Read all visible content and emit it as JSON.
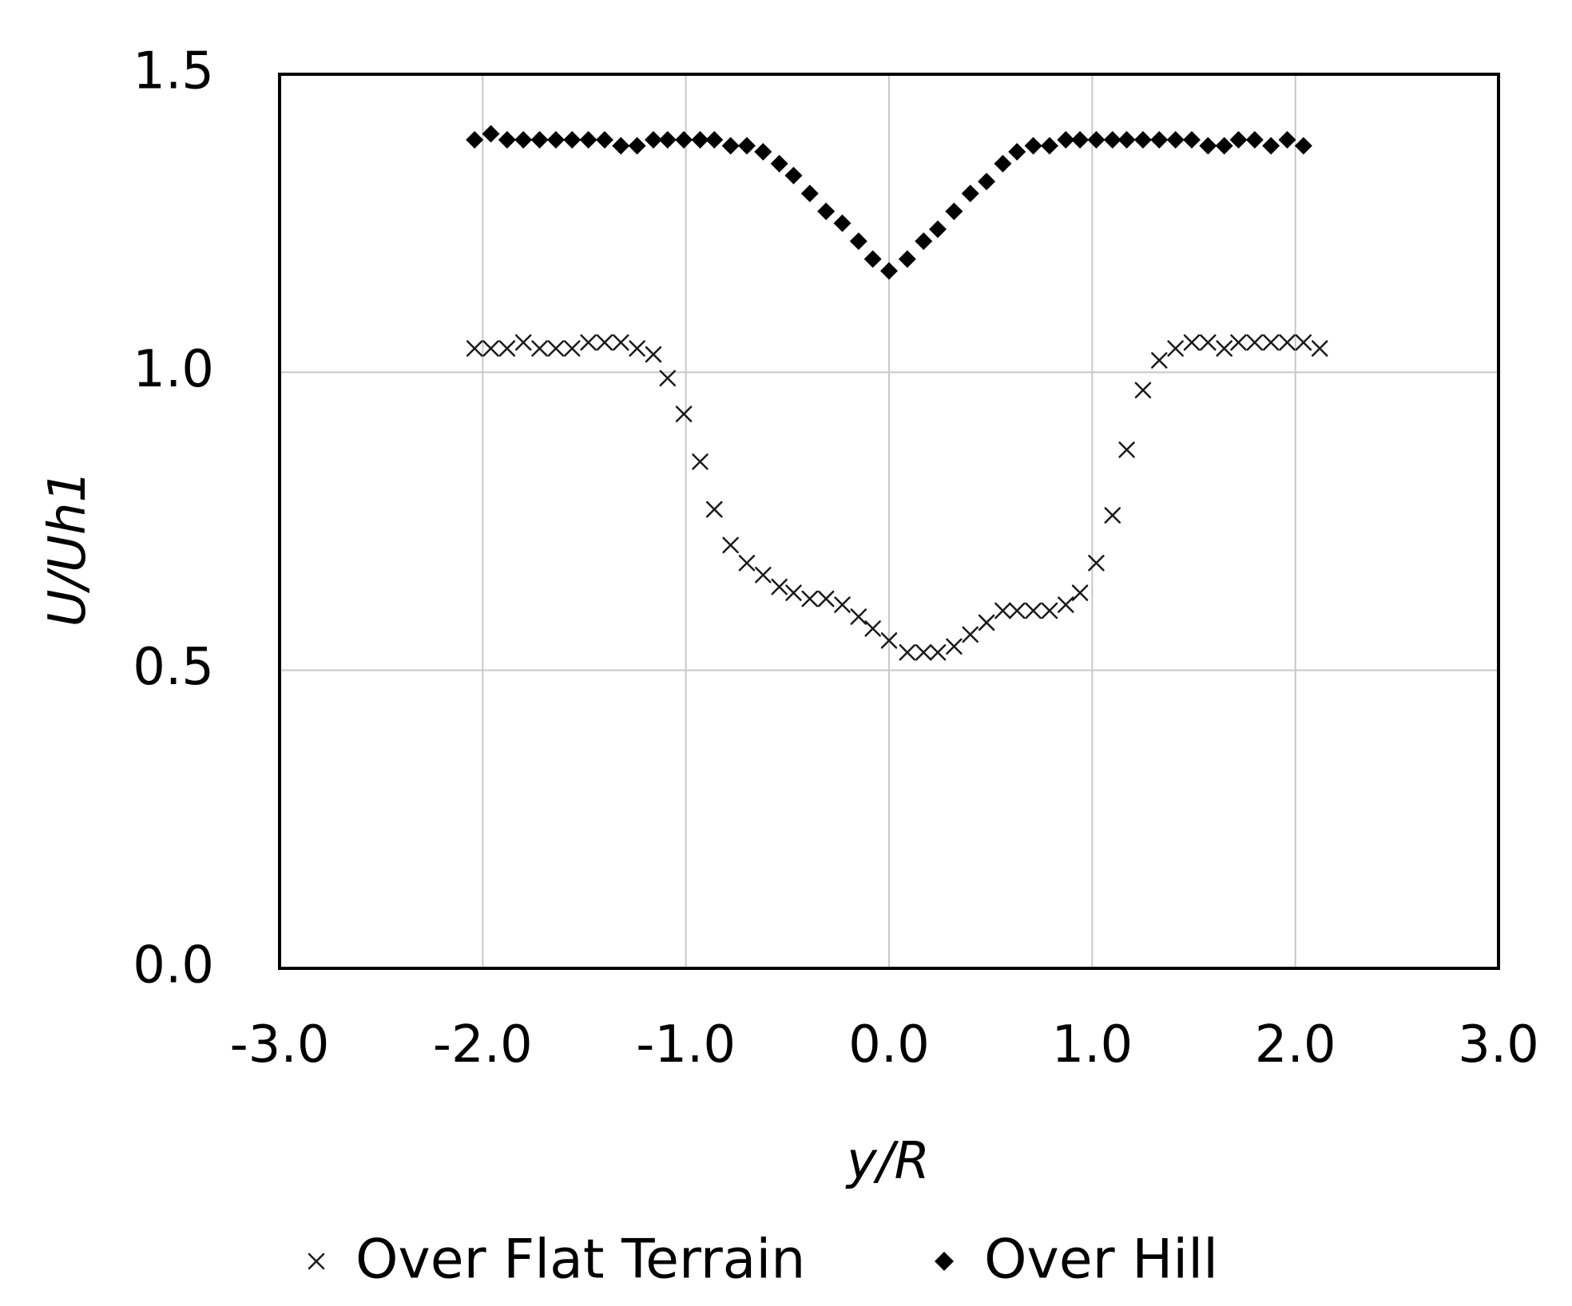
{
  "chart_data": {
    "type": "scatter",
    "title": "",
    "xlabel": "y/R",
    "ylabel": "U/Uh1",
    "xlim": [
      -3.0,
      3.0
    ],
    "ylim": [
      0.0,
      1.5
    ],
    "xticks": [
      "-3.0",
      "-2.0",
      "-1.0",
      "0.0",
      "1.0",
      "2.0",
      "3.0"
    ],
    "yticks": [
      "0.0",
      "0.5",
      "1.0",
      "1.5"
    ],
    "x_tick_values": [
      -3.0,
      -2.0,
      -1.0,
      0.0,
      1.0,
      2.0,
      3.0
    ],
    "y_tick_values": [
      0.0,
      0.5,
      1.0,
      1.5
    ],
    "grid": true,
    "legend_position": "bottom",
    "series": [
      {
        "name": "Over Flat Terrain",
        "marker": "x",
        "color": "#000000",
        "x": [
          -2.04,
          -1.96,
          -1.88,
          -1.8,
          -1.72,
          -1.64,
          -1.56,
          -1.48,
          -1.4,
          -1.32,
          -1.24,
          -1.16,
          -1.09,
          -1.01,
          -0.93,
          -0.86,
          -0.78,
          -0.7,
          -0.62,
          -0.54,
          -0.47,
          -0.39,
          -0.31,
          -0.23,
          -0.15,
          -0.08,
          0.0,
          0.09,
          0.17,
          0.24,
          0.32,
          0.4,
          0.48,
          0.56,
          0.63,
          0.71,
          0.79,
          0.87,
          0.94,
          1.02,
          1.1,
          1.17,
          1.25,
          1.33,
          1.41,
          1.49,
          1.57,
          1.65,
          1.72,
          1.8,
          1.88,
          1.96,
          2.04,
          2.12
        ],
        "y": [
          1.04,
          1.04,
          1.04,
          1.05,
          1.04,
          1.04,
          1.04,
          1.05,
          1.05,
          1.05,
          1.04,
          1.03,
          0.99,
          0.93,
          0.85,
          0.77,
          0.71,
          0.68,
          0.66,
          0.64,
          0.63,
          0.62,
          0.62,
          0.61,
          0.59,
          0.57,
          0.55,
          0.53,
          0.53,
          0.53,
          0.54,
          0.56,
          0.58,
          0.6,
          0.6,
          0.6,
          0.6,
          0.61,
          0.63,
          0.68,
          0.76,
          0.87,
          0.97,
          1.02,
          1.04,
          1.05,
          1.05,
          1.04,
          1.05,
          1.05,
          1.05,
          1.05,
          1.05,
          1.04
        ]
      },
      {
        "name": "Over Hill",
        "marker": "diamond",
        "color": "#000000",
        "x": [
          -2.04,
          -1.96,
          -1.88,
          -1.8,
          -1.72,
          -1.64,
          -1.56,
          -1.48,
          -1.4,
          -1.32,
          -1.24,
          -1.16,
          -1.09,
          -1.01,
          -0.93,
          -0.86,
          -0.78,
          -0.7,
          -0.62,
          -0.54,
          -0.47,
          -0.39,
          -0.31,
          -0.23,
          -0.15,
          -0.08,
          0.0,
          0.09,
          0.17,
          0.24,
          0.32,
          0.4,
          0.48,
          0.56,
          0.63,
          0.71,
          0.79,
          0.87,
          0.94,
          1.02,
          1.1,
          1.17,
          1.25,
          1.33,
          1.41,
          1.49,
          1.57,
          1.65,
          1.72,
          1.8,
          1.88,
          1.96,
          2.04
        ],
        "y": [
          1.39,
          1.4,
          1.39,
          1.39,
          1.39,
          1.39,
          1.39,
          1.39,
          1.39,
          1.38,
          1.38,
          1.39,
          1.39,
          1.39,
          1.39,
          1.39,
          1.38,
          1.38,
          1.37,
          1.35,
          1.33,
          1.3,
          1.27,
          1.25,
          1.22,
          1.19,
          1.17,
          1.19,
          1.22,
          1.24,
          1.27,
          1.3,
          1.32,
          1.35,
          1.37,
          1.38,
          1.38,
          1.39,
          1.39,
          1.39,
          1.39,
          1.39,
          1.39,
          1.39,
          1.39,
          1.39,
          1.38,
          1.38,
          1.39,
          1.39,
          1.38,
          1.39,
          1.38
        ]
      }
    ]
  }
}
